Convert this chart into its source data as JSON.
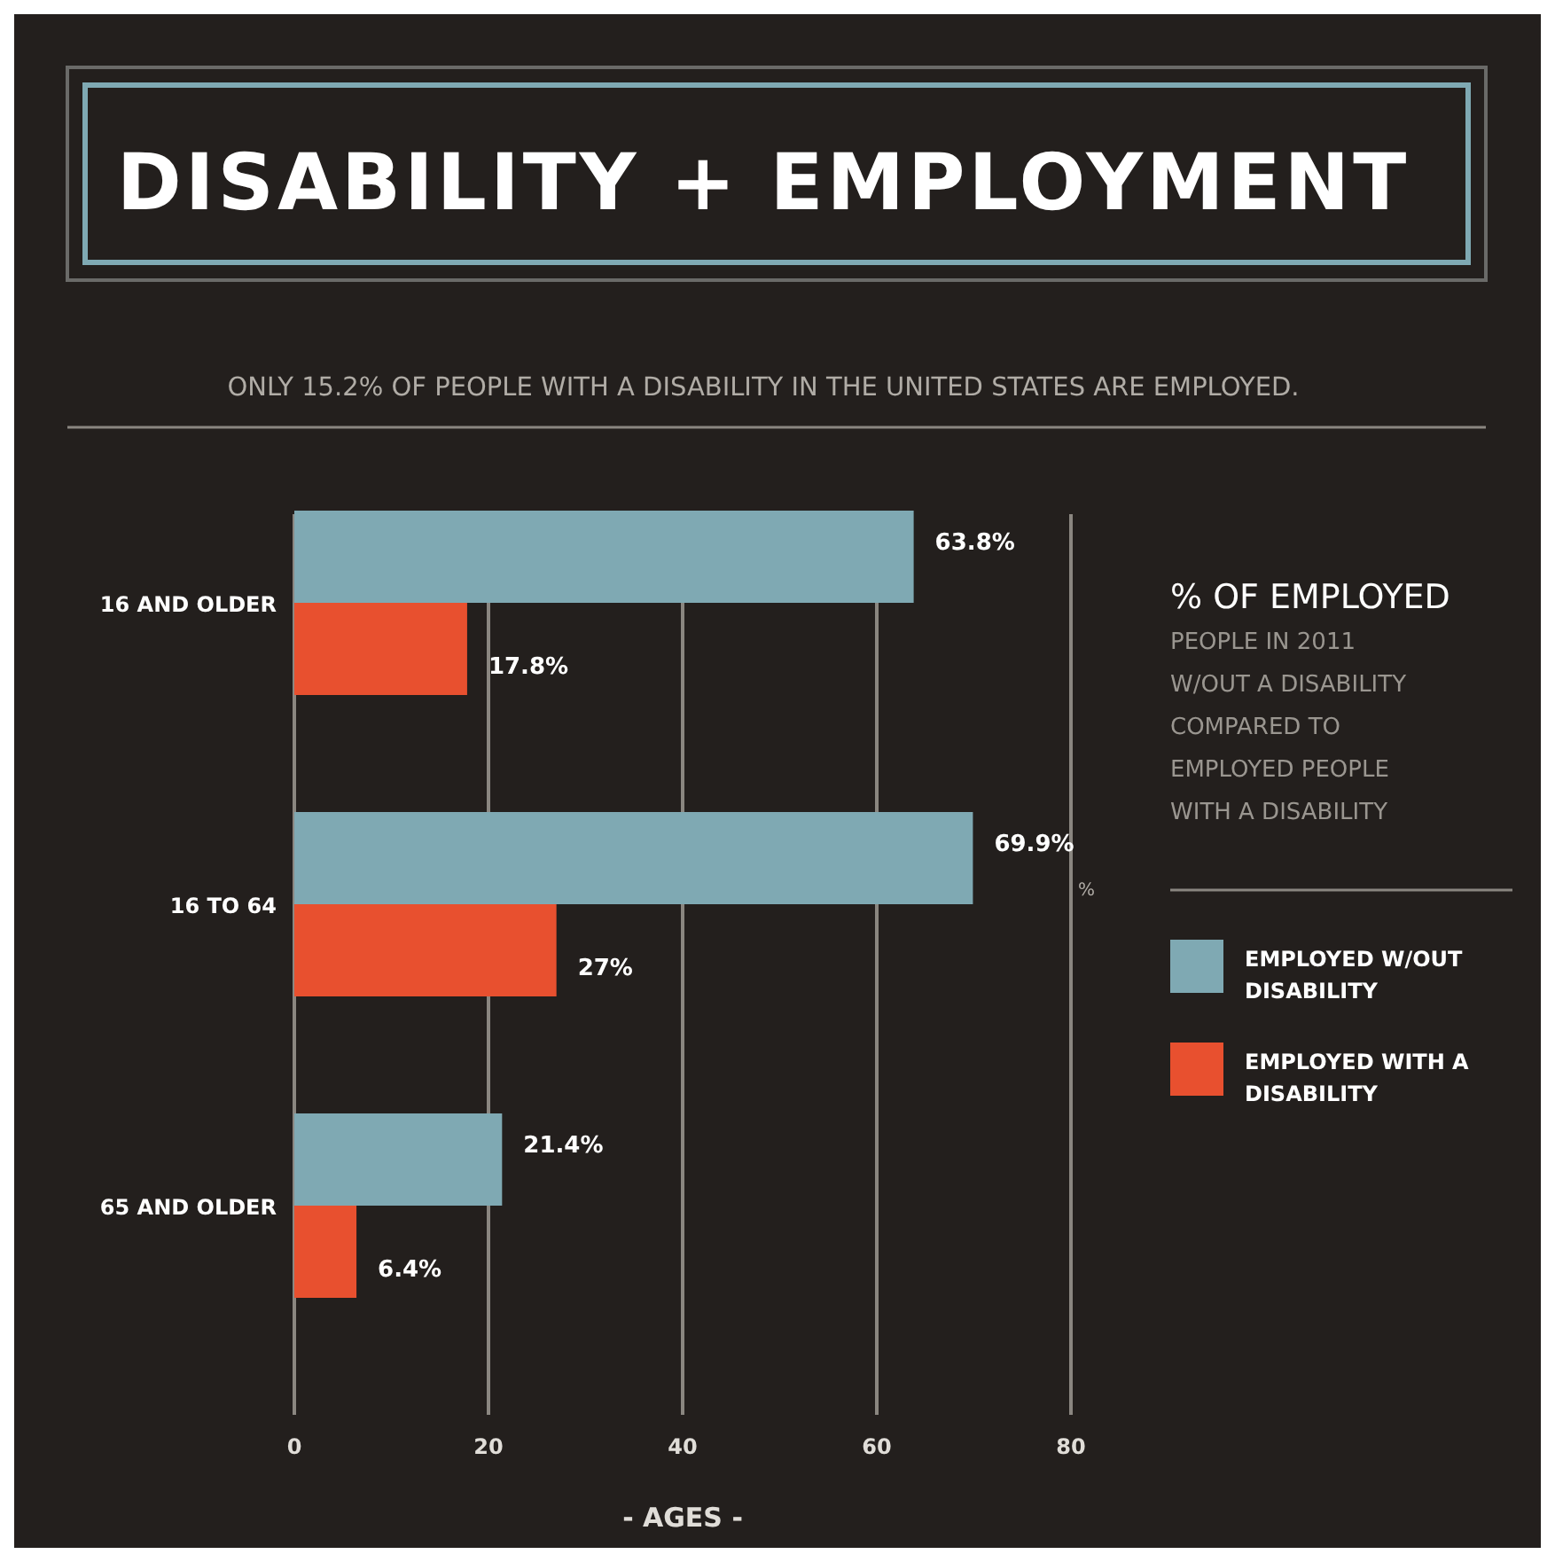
{
  "chart_data": {
    "type": "bar",
    "orientation": "horizontal",
    "title": "DISABILITY + EMPLOYMENT",
    "subtitle": "ONLY 15.2% OF PEOPLE WITH A DISABILITY IN THE UNITED STATES ARE EMPLOYED.",
    "xlabel": "- AGES -",
    "legend_title": "% OF EMPLOYED",
    "annotations": [
      "PEOPLE IN 2011 W/OUT A DISABILITY COMPARED TO EMPLOYED PEOPLE WITH A DISABILITY",
      "%"
    ],
    "categories": [
      "16 AND OLDER",
      "16 TO 64",
      "65 AND OLDER"
    ],
    "series": [
      {
        "name": "EMPLOYED W/OUT DISABILITY",
        "color": "#7fa9b3",
        "values": [
          63.8,
          69.9,
          21.4
        ],
        "value_labels": [
          "63.8%",
          "69.9%",
          "21.4%"
        ]
      },
      {
        "name": "EMPLOYED WITH A DISABILITY",
        "color": "#e8502f",
        "values": [
          17.8,
          27,
          6.4
        ],
        "value_labels": [
          "17.8%",
          "27%",
          "6.4%"
        ]
      }
    ],
    "xlim": [
      0,
      80
    ],
    "xticks": [
      0,
      20,
      40,
      60,
      80
    ],
    "grid": "x",
    "legend": "right"
  }
}
